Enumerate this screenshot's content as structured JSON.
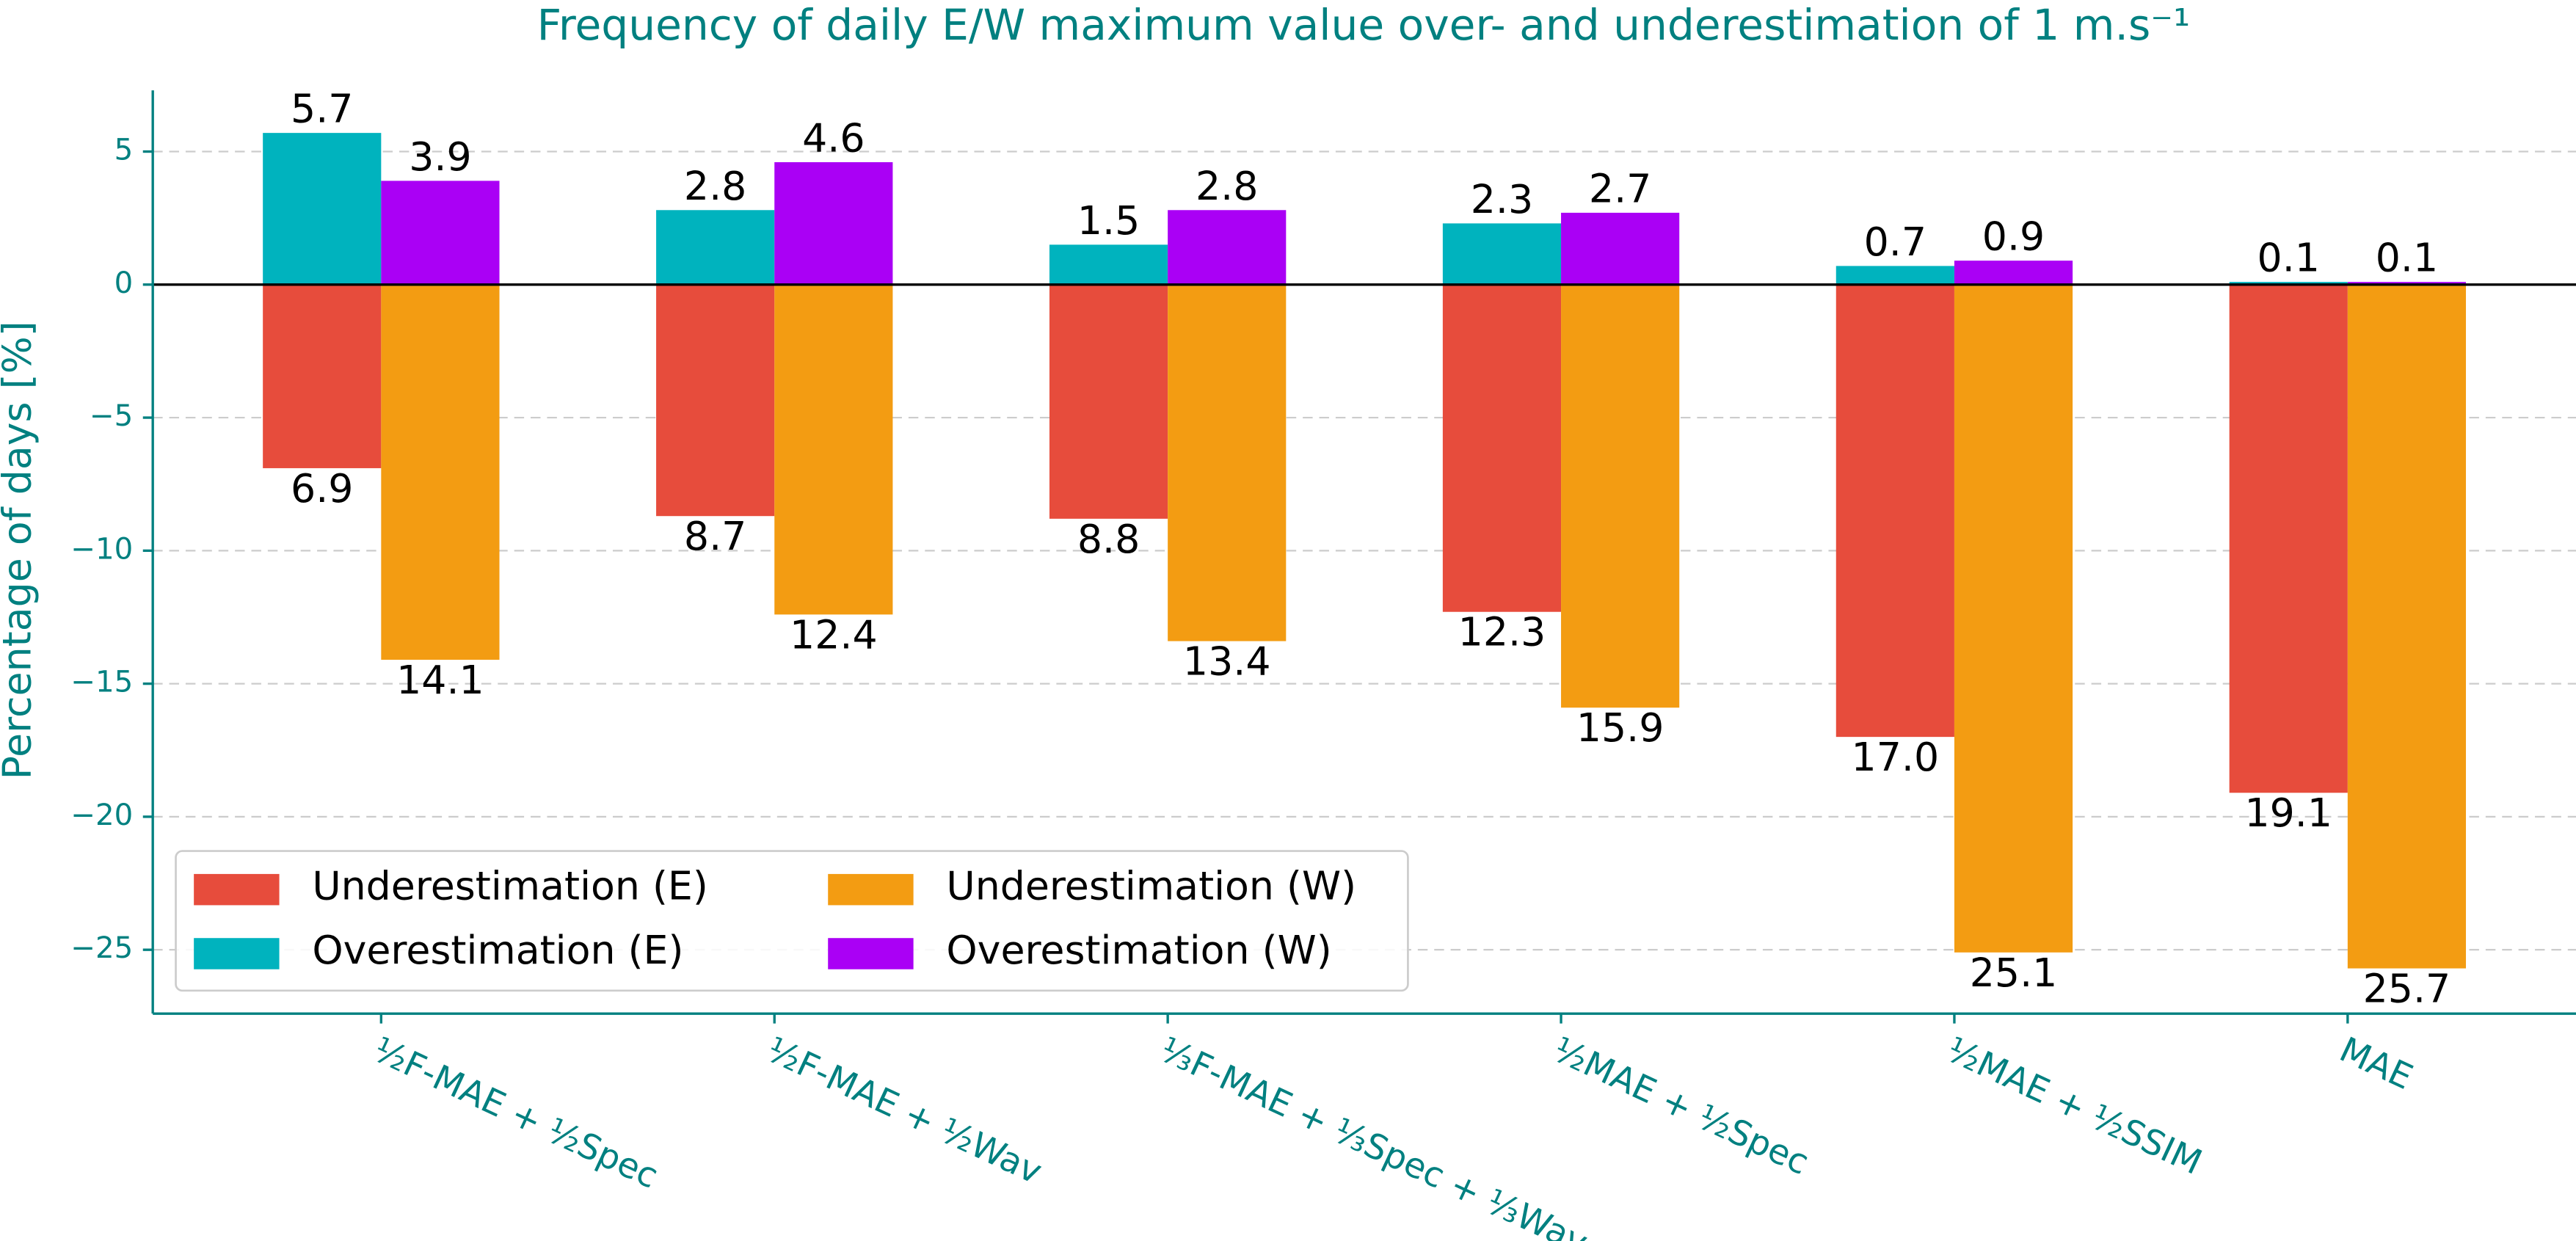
{
  "chart_data": {
    "type": "bar",
    "title": "Frequency of daily E/W maximum value over- and underestimation of 1 m.s⁻¹",
    "ylabel": "Percentage of days [%]",
    "categories": [
      "½F-MAE + ½Spec",
      "½F-MAE + ½Wav",
      "⅓F-MAE + ⅓Spec + ⅓Wav",
      "½MAE + ½Spec",
      "½MAE + ½SSIM",
      "MAE"
    ],
    "series": [
      {
        "name": "Underestimation (E)",
        "color": "#e74c3c",
        "values": [
          -6.9,
          -8.7,
          -8.8,
          -12.3,
          -17.0,
          -19.1
        ],
        "value_labels": [
          "6.9",
          "8.7",
          "8.8",
          "12.3",
          "17.0",
          "19.1"
        ]
      },
      {
        "name": "Overestimation (E)",
        "color": "#00b3be",
        "values": [
          5.7,
          2.8,
          1.5,
          2.3,
          0.7,
          0.1
        ]
      },
      {
        "name": "Underestimation (W)",
        "color": "#f39c12",
        "values": [
          -14.1,
          -12.4,
          -13.4,
          -15.9,
          -25.1,
          -25.7
        ],
        "value_labels": [
          "14.1",
          "12.4",
          "13.4",
          "15.9",
          "25.1",
          "25.7"
        ]
      },
      {
        "name": "Overestimation (W)",
        "color": "#aa00f5",
        "values": [
          3.9,
          4.6,
          2.8,
          2.7,
          0.9,
          0.1
        ]
      }
    ],
    "ylim": [
      -27.4,
      7.3
    ],
    "yticks": [
      {
        "value": -25,
        "label": "−25"
      },
      {
        "value": -20,
        "label": "−20"
      },
      {
        "value": -15,
        "label": "−15"
      },
      {
        "value": -10,
        "label": "−10"
      },
      {
        "value": -5,
        "label": "−5"
      },
      0,
      5
    ],
    "grid": true,
    "legend": "lower left"
  }
}
